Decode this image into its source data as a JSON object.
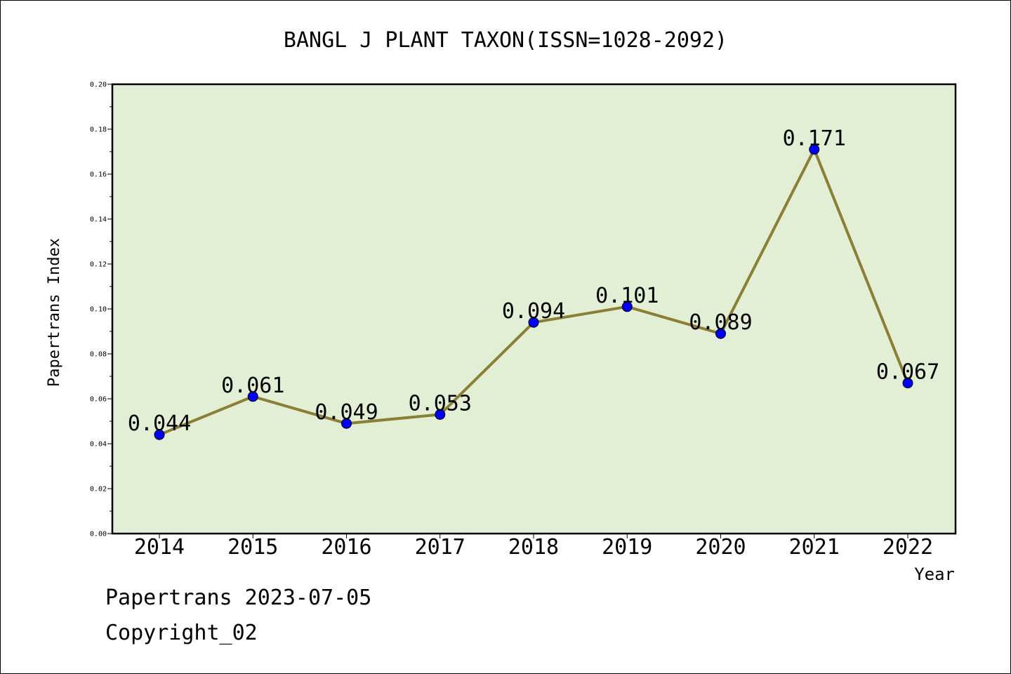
{
  "chart_data": {
    "type": "line",
    "title": "BANGL J PLANT TAXON(ISSN=1028-2092)",
    "xlabel": "Year",
    "ylabel": "Papertrans Index",
    "categories": [
      "2014",
      "2015",
      "2016",
      "2017",
      "2018",
      "2019",
      "2020",
      "2021",
      "2022"
    ],
    "series": [
      {
        "values": [
          0.044,
          0.061,
          0.049,
          0.053,
          0.094,
          0.101,
          0.089,
          0.171,
          0.067
        ]
      }
    ],
    "data_labels": [
      "0.044",
      "0.061",
      "0.049",
      "0.053",
      "0.094",
      "0.101",
      "0.089",
      "0.171",
      "0.067"
    ],
    "ylim": [
      0,
      0.2
    ],
    "yticks": [
      "0.00",
      "0.02",
      "0.04",
      "0.06",
      "0.08",
      "0.10",
      "0.12",
      "0.14",
      "0.16",
      "0.18",
      "0.20"
    ],
    "grid": false,
    "colors": {
      "plot_background": "#e2efd5",
      "line": "#8b7e35",
      "marker": "#0000ff"
    }
  },
  "footer": {
    "line1": "Papertrans 2023-07-05",
    "line2": "Copyright_02"
  }
}
